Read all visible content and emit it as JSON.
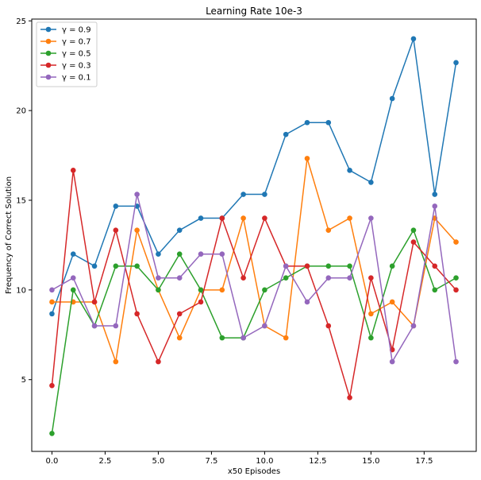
{
  "chart_data": {
    "type": "line",
    "title": "Learning Rate 10e-3",
    "xlabel": "x50 Episodes",
    "ylabel": "Frequency of Correct Solution",
    "xlim": [
      -0.95,
      19.95
    ],
    "ylim": [
      1.0,
      25.1
    ],
    "xticks": [
      0.0,
      2.5,
      5.0,
      7.5,
      10.0,
      12.5,
      15.0,
      17.5
    ],
    "xtick_labels": [
      "0.0",
      "2.5",
      "5.0",
      "7.5",
      "10.0",
      "12.5",
      "15.0",
      "17.5"
    ],
    "yticks": [
      5,
      10,
      15,
      20,
      25
    ],
    "ytick_labels": [
      "5",
      "10",
      "15",
      "20",
      "25"
    ],
    "grid": false,
    "legend_position": "top-left",
    "x": [
      0,
      1,
      2,
      3,
      4,
      5,
      6,
      7,
      8,
      9,
      10,
      11,
      12,
      13,
      14,
      15,
      16,
      17,
      18,
      19
    ],
    "series": [
      {
        "name": "γ = 0.9",
        "color": "#1f77b4",
        "values": [
          8.67,
          12.0,
          11.33,
          14.67,
          14.67,
          12.0,
          13.33,
          14.0,
          14.0,
          15.33,
          15.33,
          18.67,
          19.33,
          19.33,
          16.67,
          16.0,
          20.67,
          24.0,
          15.33,
          22.67
        ]
      },
      {
        "name": "γ = 0.7",
        "color": "#ff7f0e",
        "values": [
          9.33,
          9.33,
          9.33,
          6.0,
          13.33,
          10.0,
          7.33,
          10.0,
          10.0,
          14.0,
          8.0,
          7.33,
          17.33,
          13.33,
          14.0,
          8.67,
          9.33,
          8.0,
          14.0,
          12.67
        ]
      },
      {
        "name": "γ = 0.5",
        "color": "#2ca02c",
        "values": [
          2.0,
          10.0,
          8.0,
          11.33,
          11.33,
          10.0,
          12.0,
          10.0,
          7.33,
          7.33,
          10.0,
          10.67,
          11.33,
          11.33,
          11.33,
          7.33,
          11.33,
          13.33,
          10.0,
          10.67
        ]
      },
      {
        "name": "γ = 0.3",
        "color": "#d62728",
        "values": [
          4.67,
          16.67,
          9.33,
          13.33,
          8.67,
          6.0,
          8.67,
          9.33,
          14.0,
          10.67,
          14.0,
          11.33,
          11.33,
          8.0,
          4.0,
          10.67,
          6.67,
          12.67,
          11.33,
          10.0
        ]
      },
      {
        "name": "γ = 0.1",
        "color": "#9467bd",
        "values": [
          10.0,
          10.67,
          8.0,
          8.0,
          15.33,
          10.67,
          10.67,
          12.0,
          12.0,
          7.33,
          8.0,
          11.33,
          9.33,
          10.67,
          10.67,
          14.0,
          6.0,
          8.0,
          14.67,
          6.0
        ]
      }
    ]
  }
}
